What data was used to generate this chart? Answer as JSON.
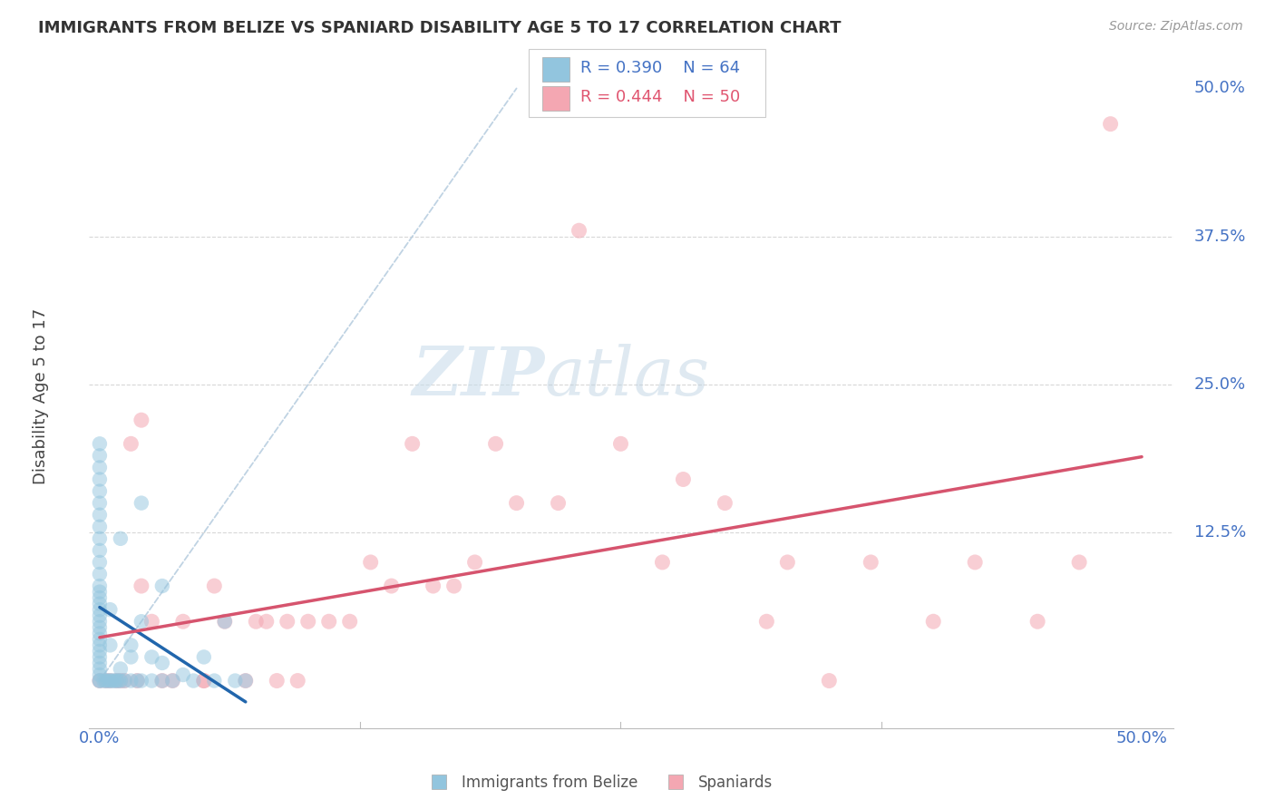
{
  "title": "IMMIGRANTS FROM BELIZE VS SPANIARD DISABILITY AGE 5 TO 17 CORRELATION CHART",
  "source": "Source: ZipAtlas.com",
  "ylabel": "Disability Age 5 to 17",
  "legend_r1": "R = 0.390",
  "legend_n1": "N = 64",
  "legend_r2": "R = 0.444",
  "legend_n2": "N = 50",
  "color_blue": "#92c5de",
  "color_pink": "#f4a7b2",
  "color_blue_line": "#2166ac",
  "color_pink_line": "#d6546e",
  "color_dash": "#aec7d8",
  "watermark_zip": "ZIP",
  "watermark_atlas": "atlas",
  "belize_x": [
    0.0,
    0.0,
    0.0,
    0.0,
    0.0,
    0.0,
    0.0,
    0.0,
    0.0,
    0.0,
    0.0,
    0.0,
    0.0,
    0.0,
    0.0,
    0.0,
    0.0,
    0.0,
    0.0,
    0.0,
    0.0,
    0.0,
    0.0,
    0.0,
    0.0,
    0.0,
    0.0,
    0.0,
    0.0,
    0.0,
    0.2,
    0.3,
    0.4,
    0.5,
    0.5,
    0.6,
    0.7,
    0.8,
    0.9,
    1.0,
    1.0,
    1.2,
    1.5,
    1.5,
    1.8,
    2.0,
    2.0,
    2.5,
    2.5,
    3.0,
    3.0,
    3.5,
    4.0,
    4.5,
    5.0,
    5.5,
    6.0,
    6.5,
    7.0,
    3.0,
    1.0,
    0.5,
    2.0,
    1.5
  ],
  "belize_y": [
    0.0,
    0.0,
    0.5,
    1.0,
    1.5,
    2.0,
    2.5,
    3.0,
    3.5,
    4.0,
    4.5,
    5.0,
    5.5,
    6.0,
    6.5,
    7.0,
    7.5,
    8.0,
    9.0,
    10.0,
    11.0,
    12.0,
    13.0,
    14.0,
    15.0,
    16.0,
    17.0,
    18.0,
    19.0,
    20.0,
    0.0,
    0.0,
    0.0,
    0.0,
    3.0,
    0.0,
    0.0,
    0.0,
    0.0,
    0.0,
    1.0,
    0.0,
    0.0,
    3.0,
    0.0,
    0.0,
    5.0,
    0.0,
    2.0,
    0.0,
    8.0,
    0.0,
    0.5,
    0.0,
    2.0,
    0.0,
    5.0,
    0.0,
    0.0,
    1.5,
    12.0,
    6.0,
    15.0,
    2.0
  ],
  "spaniard_x": [
    0.0,
    0.3,
    0.5,
    0.8,
    1.0,
    1.2,
    1.5,
    1.8,
    2.0,
    2.5,
    3.0,
    3.5,
    4.0,
    5.0,
    5.5,
    6.0,
    7.0,
    7.5,
    8.0,
    8.5,
    9.0,
    9.5,
    10.0,
    11.0,
    12.0,
    13.0,
    14.0,
    15.0,
    16.0,
    17.0,
    18.0,
    19.0,
    20.0,
    22.0,
    23.0,
    25.0,
    27.0,
    28.0,
    30.0,
    32.0,
    33.0,
    35.0,
    37.0,
    40.0,
    42.0,
    45.0,
    47.0,
    48.5,
    2.0,
    5.0
  ],
  "spaniard_y": [
    0.0,
    0.0,
    0.0,
    0.0,
    0.0,
    0.0,
    20.0,
    0.0,
    8.0,
    5.0,
    0.0,
    0.0,
    5.0,
    0.0,
    8.0,
    5.0,
    0.0,
    5.0,
    5.0,
    0.0,
    5.0,
    0.0,
    5.0,
    5.0,
    5.0,
    10.0,
    8.0,
    20.0,
    8.0,
    8.0,
    10.0,
    20.0,
    15.0,
    15.0,
    38.0,
    20.0,
    10.0,
    17.0,
    15.0,
    5.0,
    10.0,
    0.0,
    10.0,
    5.0,
    10.0,
    5.0,
    10.0,
    47.0,
    22.0,
    0.0
  ]
}
